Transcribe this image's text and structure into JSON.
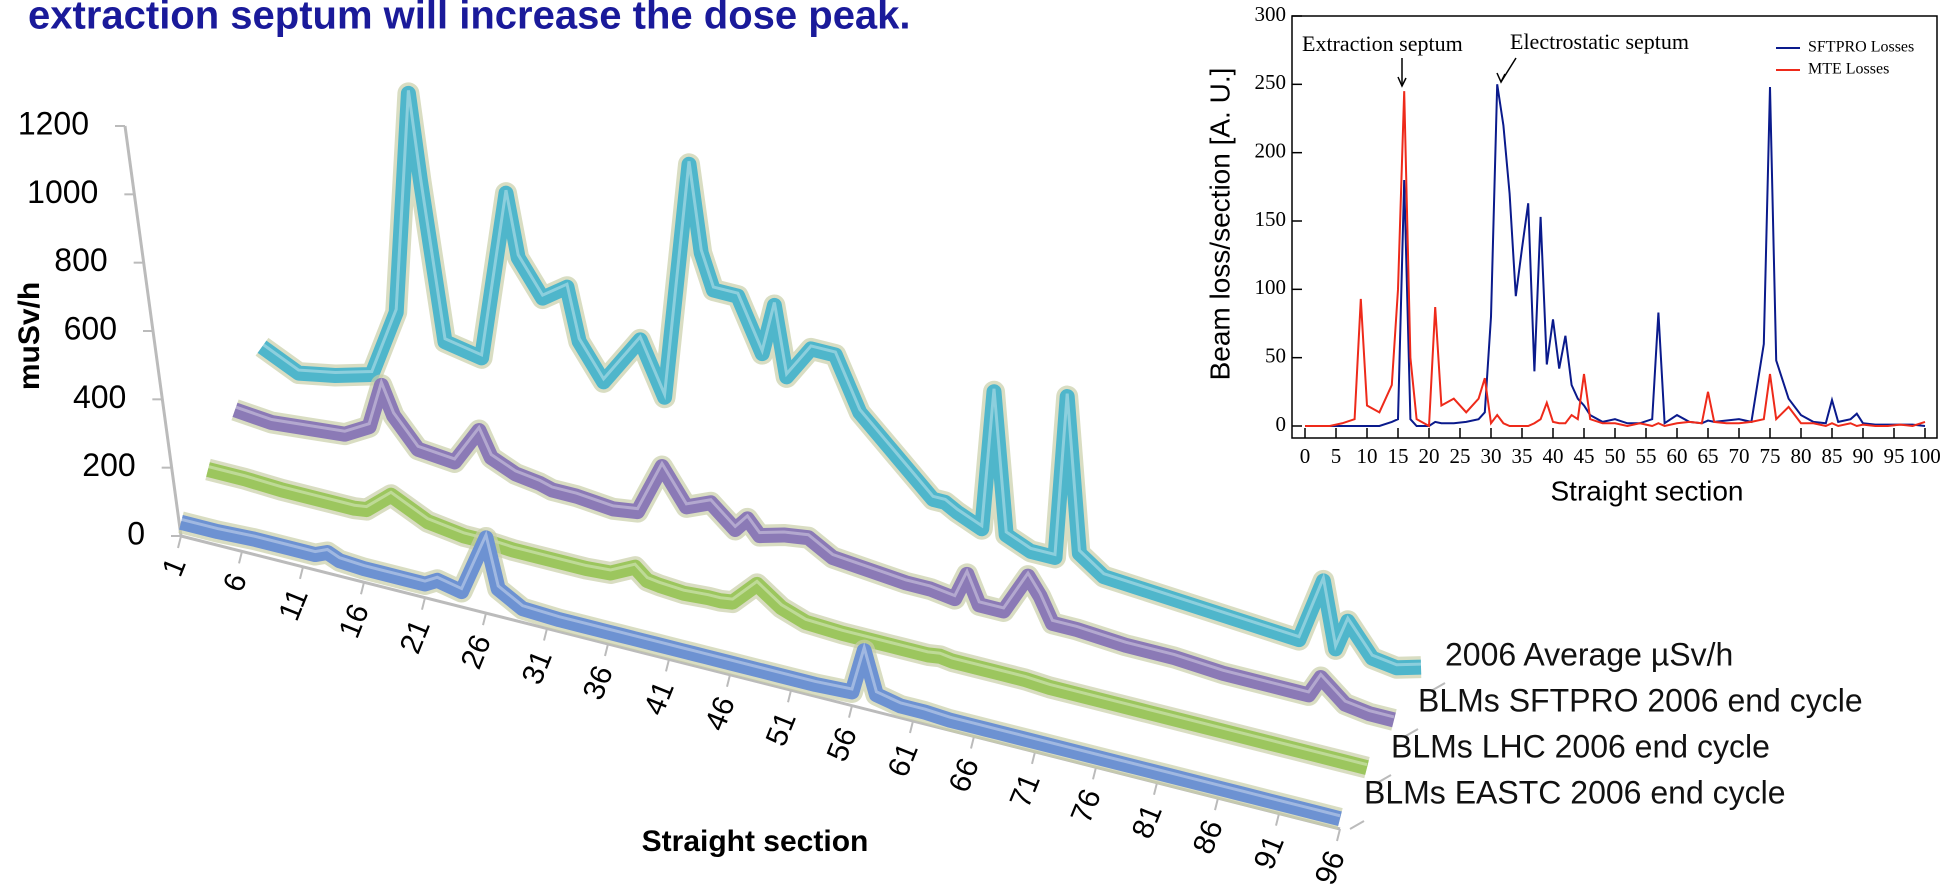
{
  "title": "extraction septum will increase the dose peak.",
  "chart_data": [
    {
      "type": "ribbon3d",
      "x_label": "Straight section",
      "y_label": "muSv/h",
      "x": [
        1,
        4,
        7,
        10,
        12,
        13,
        14,
        16,
        19,
        21,
        22,
        24,
        26,
        27,
        29,
        32,
        34,
        36,
        37,
        38,
        40,
        42,
        43,
        44,
        46,
        48,
        50,
        53,
        56,
        57,
        58,
        60,
        61,
        62,
        64,
        66,
        67,
        68,
        70,
        74,
        78,
        82,
        86,
        88,
        89,
        90,
        92,
        94,
        96
      ],
      "xlim": [
        1,
        96
      ],
      "xticks": [
        1,
        6,
        11,
        16,
        21,
        26,
        31,
        36,
        41,
        46,
        51,
        56,
        61,
        66,
        71,
        76,
        81,
        86,
        91,
        96
      ],
      "ylim": [
        0,
        1200
      ],
      "yticks": [
        0,
        200,
        400,
        600,
        800,
        1000,
        1200
      ],
      "series": [
        {
          "name": "2006 Average µSv/h",
          "color": "#4fb6cb",
          "values": [
            150,
            100,
            120,
            150,
            350,
            1000,
            750,
            300,
            280,
            780,
            600,
            500,
            550,
            400,
            300,
            450,
            300,
            1000,
            750,
            650,
            650,
            500,
            650,
            450,
            550,
            550,
            400,
            300,
            200,
            200,
            180,
            150,
            560,
            150,
            120,
            120,
            600,
            150,
            100,
            90,
            80,
            70,
            60,
            250,
            60,
            150,
            60,
            50,
            70
          ]
        },
        {
          "name": "BLMs SFTPRO 2006 end cycle",
          "color": "#8b7ab6",
          "values": [
            100,
            90,
            100,
            110,
            150,
            280,
            200,
            120,
            110,
            220,
            150,
            120,
            110,
            100,
            100,
            90,
            100,
            250,
            200,
            150,
            180,
            120,
            160,
            120,
            140,
            150,
            110,
            100,
            90,
            90,
            90,
            80,
            160,
            80,
            80,
            200,
            150,
            80,
            80,
            70,
            70,
            60,
            60,
            60,
            60,
            120,
            60,
            50,
            50
          ]
        },
        {
          "name": "BLMs LHC 2006 end cycle",
          "color": "#9cc65e",
          "values": [
            60,
            60,
            55,
            55,
            55,
            55,
            60,
            120,
            70,
            60,
            55,
            55,
            50,
            50,
            50,
            50,
            55,
            90,
            60,
            55,
            50,
            55,
            55,
            60,
            130,
            80,
            55,
            50,
            50,
            50,
            50,
            50,
            55,
            50,
            50,
            50,
            50,
            50,
            45,
            45,
            45,
            45,
            45,
            45,
            45,
            45,
            45,
            45,
            45
          ]
        },
        {
          "name": "BLMs EASTC 2006 end cycle",
          "color": "#6d92d2",
          "values": [
            40,
            40,
            45,
            45,
            45,
            60,
            45,
            40,
            40,
            40,
            60,
            45,
            220,
            80,
            40,
            35,
            35,
            35,
            35,
            35,
            35,
            35,
            35,
            35,
            35,
            35,
            35,
            35,
            40,
            170,
            50,
            35,
            35,
            35,
            30,
            30,
            30,
            30,
            30,
            30,
            30,
            30,
            30,
            30,
            30,
            30,
            30,
            30,
            30
          ]
        }
      ]
    },
    {
      "type": "line",
      "x_label": "Straight section",
      "y_label": "Beam loss/section [A. U.]",
      "x": [
        0,
        2,
        4,
        6,
        8,
        9,
        10,
        12,
        14,
        15,
        16,
        17,
        18,
        20,
        21,
        22,
        24,
        26,
        28,
        29,
        30,
        31,
        32,
        33,
        34,
        35,
        36,
        37,
        38,
        39,
        40,
        41,
        42,
        43,
        44,
        45,
        46,
        48,
        50,
        52,
        54,
        56,
        57,
        58,
        60,
        62,
        64,
        65,
        66,
        68,
        70,
        72,
        74,
        75,
        76,
        78,
        80,
        82,
        84,
        85,
        86,
        88,
        89,
        90,
        92,
        94,
        96,
        98,
        100
      ],
      "xlim": [
        0,
        100
      ],
      "xticks": [
        0,
        5,
        10,
        15,
        20,
        25,
        30,
        35,
        40,
        45,
        50,
        55,
        60,
        65,
        70,
        75,
        80,
        85,
        90,
        95,
        100
      ],
      "ylim": [
        0,
        300
      ],
      "yticks": [
        0,
        50,
        100,
        150,
        200,
        250,
        300
      ],
      "legend": "upper right",
      "annotations": [
        "Extraction septum",
        "Electrostatic septum"
      ],
      "series": [
        {
          "name": "SFTPRO Losses",
          "color": "#0a1a8c",
          "values": [
            0,
            0,
            0,
            0,
            0,
            0,
            0,
            0,
            3,
            5,
            180,
            5,
            0,
            0,
            3,
            2,
            2,
            3,
            5,
            10,
            80,
            250,
            220,
            170,
            95,
            130,
            163,
            40,
            153,
            45,
            78,
            42,
            66,
            30,
            20,
            15,
            8,
            3,
            5,
            2,
            2,
            5,
            83,
            2,
            8,
            3,
            2,
            4,
            3,
            4,
            5,
            3,
            60,
            248,
            48,
            20,
            8,
            3,
            2,
            19,
            3,
            5,
            9,
            2,
            1,
            1,
            1,
            1,
            0
          ]
        },
        {
          "name": "MTE Losses",
          "color": "#ee2a1a",
          "values": [
            0,
            0,
            0,
            2,
            5,
            93,
            15,
            10,
            30,
            100,
            245,
            50,
            5,
            0,
            87,
            15,
            20,
            10,
            20,
            35,
            2,
            8,
            2,
            0,
            0,
            0,
            0,
            2,
            5,
            17,
            3,
            2,
            2,
            8,
            5,
            38,
            5,
            2,
            2,
            0,
            2,
            0,
            2,
            0,
            2,
            3,
            2,
            25,
            3,
            2,
            2,
            3,
            5,
            38,
            5,
            14,
            2,
            2,
            0,
            2,
            0,
            2,
            0,
            1,
            0,
            0,
            1,
            0,
            3
          ]
        }
      ]
    }
  ]
}
